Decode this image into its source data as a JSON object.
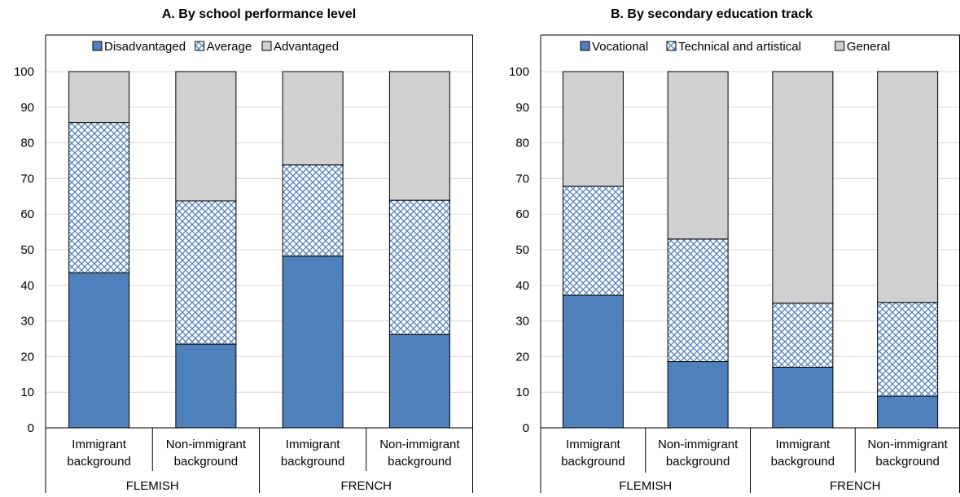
{
  "chart_data": [
    {
      "type": "bar",
      "stacked": true,
      "title": "A. By school performance level",
      "categories": [
        "Immigrant background",
        "Non-immigrant background",
        "Immigrant background",
        "Non-immigrant background"
      ],
      "category_lines": [
        [
          "Immigrant",
          "background"
        ],
        [
          "Non-immigrant",
          "background"
        ],
        [
          "Immigrant",
          "background"
        ],
        [
          "Non-immigrant",
          "background"
        ]
      ],
      "groups": [
        {
          "label": "FLEMISH",
          "span": 2
        },
        {
          "label": "FRENCH",
          "span": 2
        }
      ],
      "series": [
        {
          "name": "Disadvantaged",
          "values": [
            43.5,
            23.5,
            48.2,
            26.2
          ],
          "color": "#4f81bd",
          "pattern": "solid"
        },
        {
          "name": "Average",
          "values": [
            42.2,
            40.2,
            25.6,
            37.7
          ],
          "color": "#4f81bd",
          "pattern": "crosshatch"
        },
        {
          "name": "Advantaged",
          "values": [
            14.3,
            36.3,
            26.2,
            36.1
          ],
          "color": "#d0d0d0",
          "pattern": "solid"
        }
      ],
      "ylim": [
        0,
        100
      ],
      "yticks": [
        0,
        10,
        20,
        30,
        40,
        50,
        60,
        70,
        80,
        90,
        100
      ],
      "grid": true,
      "legend": "top"
    },
    {
      "type": "bar",
      "stacked": true,
      "title": "B. By secondary education track",
      "categories": [
        "Immigrant background",
        "Non-immigrant background",
        "Immigrant background",
        "Non-immigrant background"
      ],
      "category_lines": [
        [
          "Immigrant",
          "background"
        ],
        [
          "Non-immigrant",
          "background"
        ],
        [
          "Immigrant",
          "background"
        ],
        [
          "Non-immigrant",
          "background"
        ]
      ],
      "groups": [
        {
          "label": "FLEMISH",
          "span": 2
        },
        {
          "label": "FRENCH",
          "span": 2
        }
      ],
      "series": [
        {
          "name": "Vocational",
          "values": [
            37.2,
            18.6,
            17.0,
            8.9
          ],
          "color": "#4f81bd",
          "pattern": "solid"
        },
        {
          "name": "Technical and artistical",
          "values": [
            30.6,
            34.4,
            18.0,
            26.3
          ],
          "color": "#4f81bd",
          "pattern": "crosshatch"
        },
        {
          "name": "General",
          "values": [
            32.2,
            47.0,
            65.0,
            64.8
          ],
          "color": "#d0d0d0",
          "pattern": "solid"
        }
      ],
      "ylim": [
        0,
        100
      ],
      "yticks": [
        0,
        10,
        20,
        30,
        40,
        50,
        60,
        70,
        80,
        90,
        100
      ],
      "grid": true,
      "legend": "top"
    }
  ]
}
